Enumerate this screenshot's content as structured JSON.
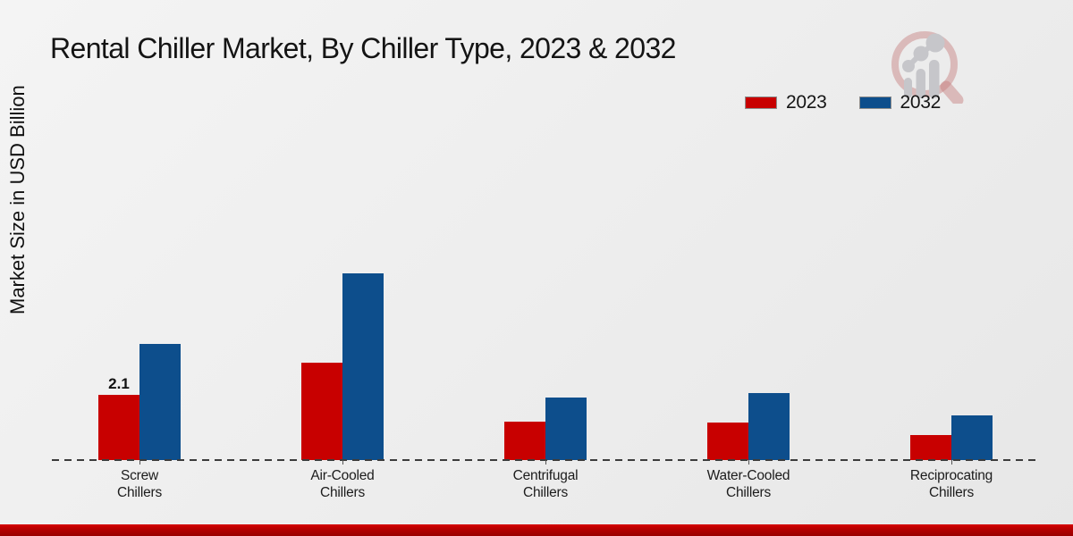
{
  "title": "Rental Chiller Market, By Chiller Type, 2023 & 2032",
  "ylabel": "Market Size in USD Billion",
  "legend": {
    "items": [
      {
        "label": "2023",
        "color": "#c80000"
      },
      {
        "label": "2032",
        "color": "#0d4e8c"
      }
    ]
  },
  "colors": {
    "series_2023": "#c80000",
    "series_2032": "#0d4e8c",
    "bottom_band": "#b30000",
    "axis": "#3c3c3c",
    "background": "#ededed"
  },
  "chart_data": {
    "type": "bar",
    "title": "Rental Chiller Market, By Chiller Type, 2023 & 2032",
    "xlabel": "",
    "ylabel": "Market Size in USD Billion",
    "categories": [
      "Screw Chillers",
      "Air-Cooled Chillers",
      "Centrifugal Chillers",
      "Water-Cooled Chillers",
      "Reciprocating Chillers"
    ],
    "series": [
      {
        "name": "2023",
        "color": "#c80000",
        "values": [
          2.1,
          3.15,
          1.25,
          1.2,
          0.8
        ]
      },
      {
        "name": "2032",
        "color": "#0d4e8c",
        "values": [
          3.75,
          6.0,
          2.0,
          2.15,
          1.45
        ]
      }
    ],
    "ylim": [
      0,
      6.5
    ],
    "grid": false,
    "legend_position": "top-right",
    "annotations": [
      {
        "text": "2.1",
        "category_index": 0,
        "series_index": 0
      }
    ]
  }
}
